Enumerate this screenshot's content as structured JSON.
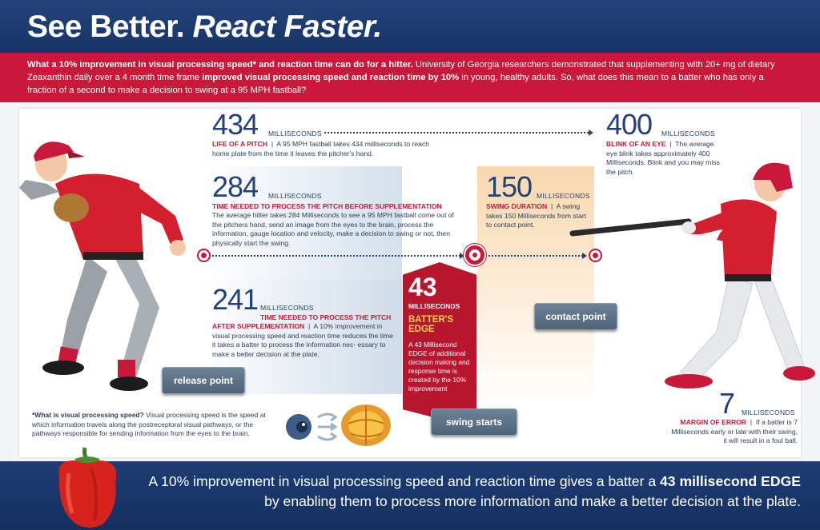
{
  "header": {
    "title_part1": "See Better.",
    "title_part2": "React Faster."
  },
  "intro": {
    "lead_bold": "What a 10% improvement in visual processing speed* and reaction time can do for a hitter.",
    "text1": " University of Georgia researchers demonstrated that supplementing with 20+ mg of dietary Zeaxanthin daily over a 4 month time frame ",
    "bold2": "improved visual processing speed and reaction time by 10%",
    "text2": " in young, healthy adults. So, what does this mean to a batter who has only a fraction of a second to make a decision to swing at a 95 MPH fastball?"
  },
  "stats": {
    "pitch": {
      "number": "434",
      "unit": "MILLISECONDS",
      "label": "LIFE OF A PITCH",
      "sep": "|",
      "text": "A 95 MPH fastball takes 434 milliseconds to reach home plate from the time it leaves the pitcher's hand."
    },
    "blink": {
      "number": "400",
      "unit": "MILLISECONDS",
      "label": "BLINK OF AN EYE",
      "sep": "|",
      "text": "The average eye blink takes approximately 400 Milliseconds. Blink and you may miss the pitch."
    },
    "before": {
      "number": "284",
      "unit": "MILLISECONDS",
      "label": "TIME NEEDED TO PROCESS THE PITCH BEFORE SUPPLEMENTATION",
      "text": "The average hitter takes 284 Milliseconds to see a 95 MPH fastball come out of the pitchers hand, send an image from the eyes to the brain, process the information, gauge location and velocity, make a decision to swing or not, then physically start the swing."
    },
    "swing": {
      "number": "150",
      "unit": "MILLISECONDS",
      "label": "SWING DURATION",
      "sep": "|",
      "text": "A swing takes 150 Milliseconds from start to contact point."
    },
    "after": {
      "number": "241",
      "unit": "MILLISECONDS",
      "label1": "TIME NEEDED TO PROCESS THE PITCH",
      "label2": "AFTER SUPPLEMENTATION",
      "sep": "|",
      "text": "A 10% improvement in visual processing speed and reaction time reduces the time it takes a batter to process the information nec- essary to make a better decision at the plate."
    },
    "edge": {
      "number": "43",
      "unit": "MILLISECONDS",
      "label": "BATTER'S EDGE",
      "text": "A 43 Millisecond EDGE of additional decision making and response time is created by the 10% improvement"
    },
    "margin": {
      "number": "7",
      "unit": "MILLISECONDS",
      "label": "MARGIN OF ERROR",
      "sep": "|",
      "text": "If a batter is 7 Milliseconds early or late with their swing, it will result in a foul ball."
    }
  },
  "tags": {
    "release": "release point",
    "contact": "contact point",
    "swing_starts": "swing starts"
  },
  "footnote": {
    "bold": "*What is visual processing speed?",
    "text": " Visual processing speed is the speed at which information travels along the postreceptoral visual pathways, or the pathways responsible for sending information from the eyes to the brain."
  },
  "footer": {
    "text1": "A 10% improvement in visual processing speed and reaction time gives a batter a ",
    "bold": "43 millisecond EDGE",
    "text2": " by enabling them to process more information and make a better decision at the plate."
  },
  "colors": {
    "navy": "#22417a",
    "red": "#c8193a",
    "gold": "#f7d24a"
  }
}
